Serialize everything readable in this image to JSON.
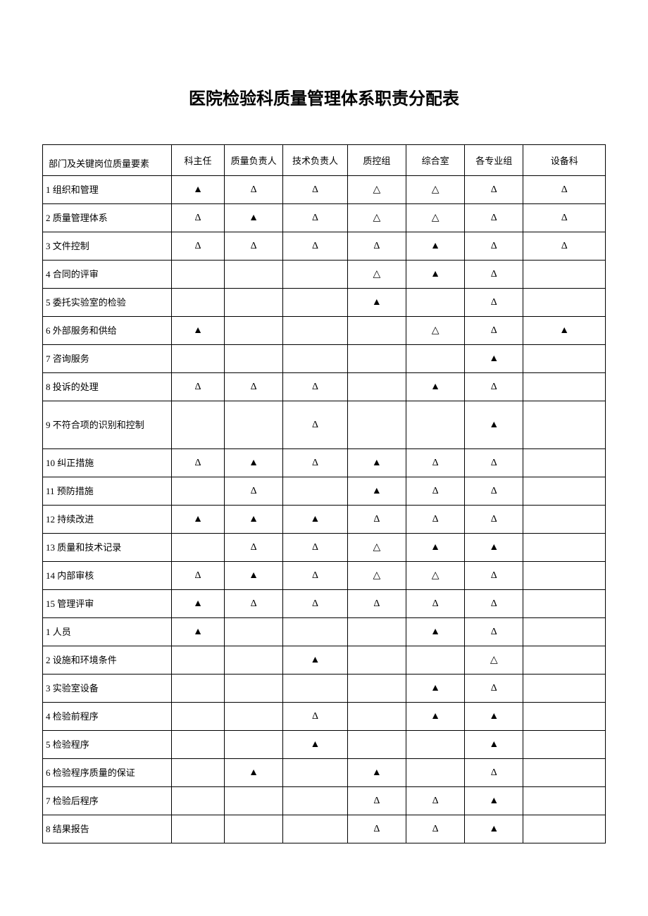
{
  "title": "医院检验科质量管理体系职责分配表",
  "table": {
    "row_header": "部门及关键岗位质量要素",
    "columns": [
      "科主任",
      "质量负责人",
      "技术负责人",
      "质控组",
      "综合室",
      "各专业组",
      "设备科"
    ],
    "column_widths_pct": [
      22,
      9,
      10,
      11,
      10,
      10,
      10,
      14
    ],
    "symbols": {
      "filled": "▲",
      "open_delta": "Δ",
      "open_triangle": "△",
      "empty": ""
    },
    "text_color": "#000000",
    "border_color": "#000000",
    "background_color": "#ffffff",
    "title_fontsize_pt": 18,
    "cell_fontsize_pt": 10,
    "rows": [
      {
        "label": "1 组织和管理",
        "cells": [
          "▲",
          "Δ",
          "Δ",
          "△",
          "△",
          "Δ",
          "Δ"
        ]
      },
      {
        "label": "2 质量管理体系",
        "cells": [
          "Δ",
          "▲",
          "Δ",
          "△",
          "△",
          "Δ",
          "Δ"
        ]
      },
      {
        "label": "3 文件控制",
        "cells": [
          "Δ",
          "Δ",
          "Δ",
          "Δ",
          "▲",
          "Δ",
          "Δ"
        ]
      },
      {
        "label": "4 合同的评审",
        "cells": [
          "",
          "",
          "",
          "△",
          "▲",
          "Δ",
          ""
        ]
      },
      {
        "label": "5 委托实验室的检验",
        "cells": [
          "",
          "",
          "",
          "▲",
          "",
          "Δ",
          ""
        ]
      },
      {
        "label": "6 外部服务和供给",
        "cells": [
          "▲",
          "",
          "",
          "",
          "△",
          "Δ",
          "▲"
        ]
      },
      {
        "label": "7 咨询服务",
        "cells": [
          "",
          "",
          "",
          "",
          "",
          "▲",
          ""
        ]
      },
      {
        "label": "8 投诉的处理",
        "cells": [
          "Δ",
          "Δ",
          "Δ",
          "",
          "▲",
          "Δ",
          ""
        ]
      },
      {
        "label": "9 不符合项的识别和控制",
        "cells": [
          "",
          "",
          "Δ",
          "",
          "",
          "▲",
          ""
        ],
        "tall": true
      },
      {
        "label": "10 纠正措施",
        "cells": [
          "Δ",
          "▲",
          "Δ",
          "▲",
          "Δ",
          "Δ",
          ""
        ]
      },
      {
        "label": "11 预防措施",
        "cells": [
          "",
          "Δ",
          "",
          "▲",
          "Δ",
          "Δ",
          ""
        ]
      },
      {
        "label": "12 持续改进",
        "cells": [
          "▲",
          "▲",
          "▲",
          "Δ",
          "Δ",
          "Δ",
          ""
        ]
      },
      {
        "label": "13 质量和技术记录",
        "cells": [
          "",
          "Δ",
          "Δ",
          "△",
          "▲",
          "▲",
          ""
        ]
      },
      {
        "label": "14 内部审核",
        "cells": [
          "Δ",
          "▲",
          "Δ",
          "△",
          "△",
          "Δ",
          ""
        ]
      },
      {
        "label": "15 管理评审",
        "cells": [
          "▲",
          "Δ",
          "Δ",
          "Δ",
          "Δ",
          "Δ",
          ""
        ]
      },
      {
        "label": "1 人员",
        "cells": [
          "▲",
          "",
          "",
          "",
          "▲",
          "Δ",
          ""
        ]
      },
      {
        "label": "2 设施和环境条件",
        "cells": [
          "",
          "",
          "▲",
          "",
          "",
          "△",
          ""
        ]
      },
      {
        "label": "3 实验室设备",
        "cells": [
          "",
          "",
          "",
          "",
          "▲",
          "Δ",
          ""
        ]
      },
      {
        "label": "4 检验前程序",
        "cells": [
          "",
          "",
          "Δ",
          "",
          "▲",
          "▲",
          ""
        ]
      },
      {
        "label": "5 检验程序",
        "cells": [
          "",
          "",
          "▲",
          "",
          "",
          "▲",
          ""
        ]
      },
      {
        "label": "6 检验程序质量的保证",
        "cells": [
          "",
          "▲",
          "",
          "▲",
          "",
          "Δ",
          ""
        ]
      },
      {
        "label": "7 检验后程序",
        "cells": [
          "",
          "",
          "",
          "Δ",
          "Δ",
          "▲",
          ""
        ]
      },
      {
        "label": "8 结果报告",
        "cells": [
          "",
          "",
          "",
          "Δ",
          "Δ",
          "▲",
          ""
        ]
      }
    ]
  }
}
